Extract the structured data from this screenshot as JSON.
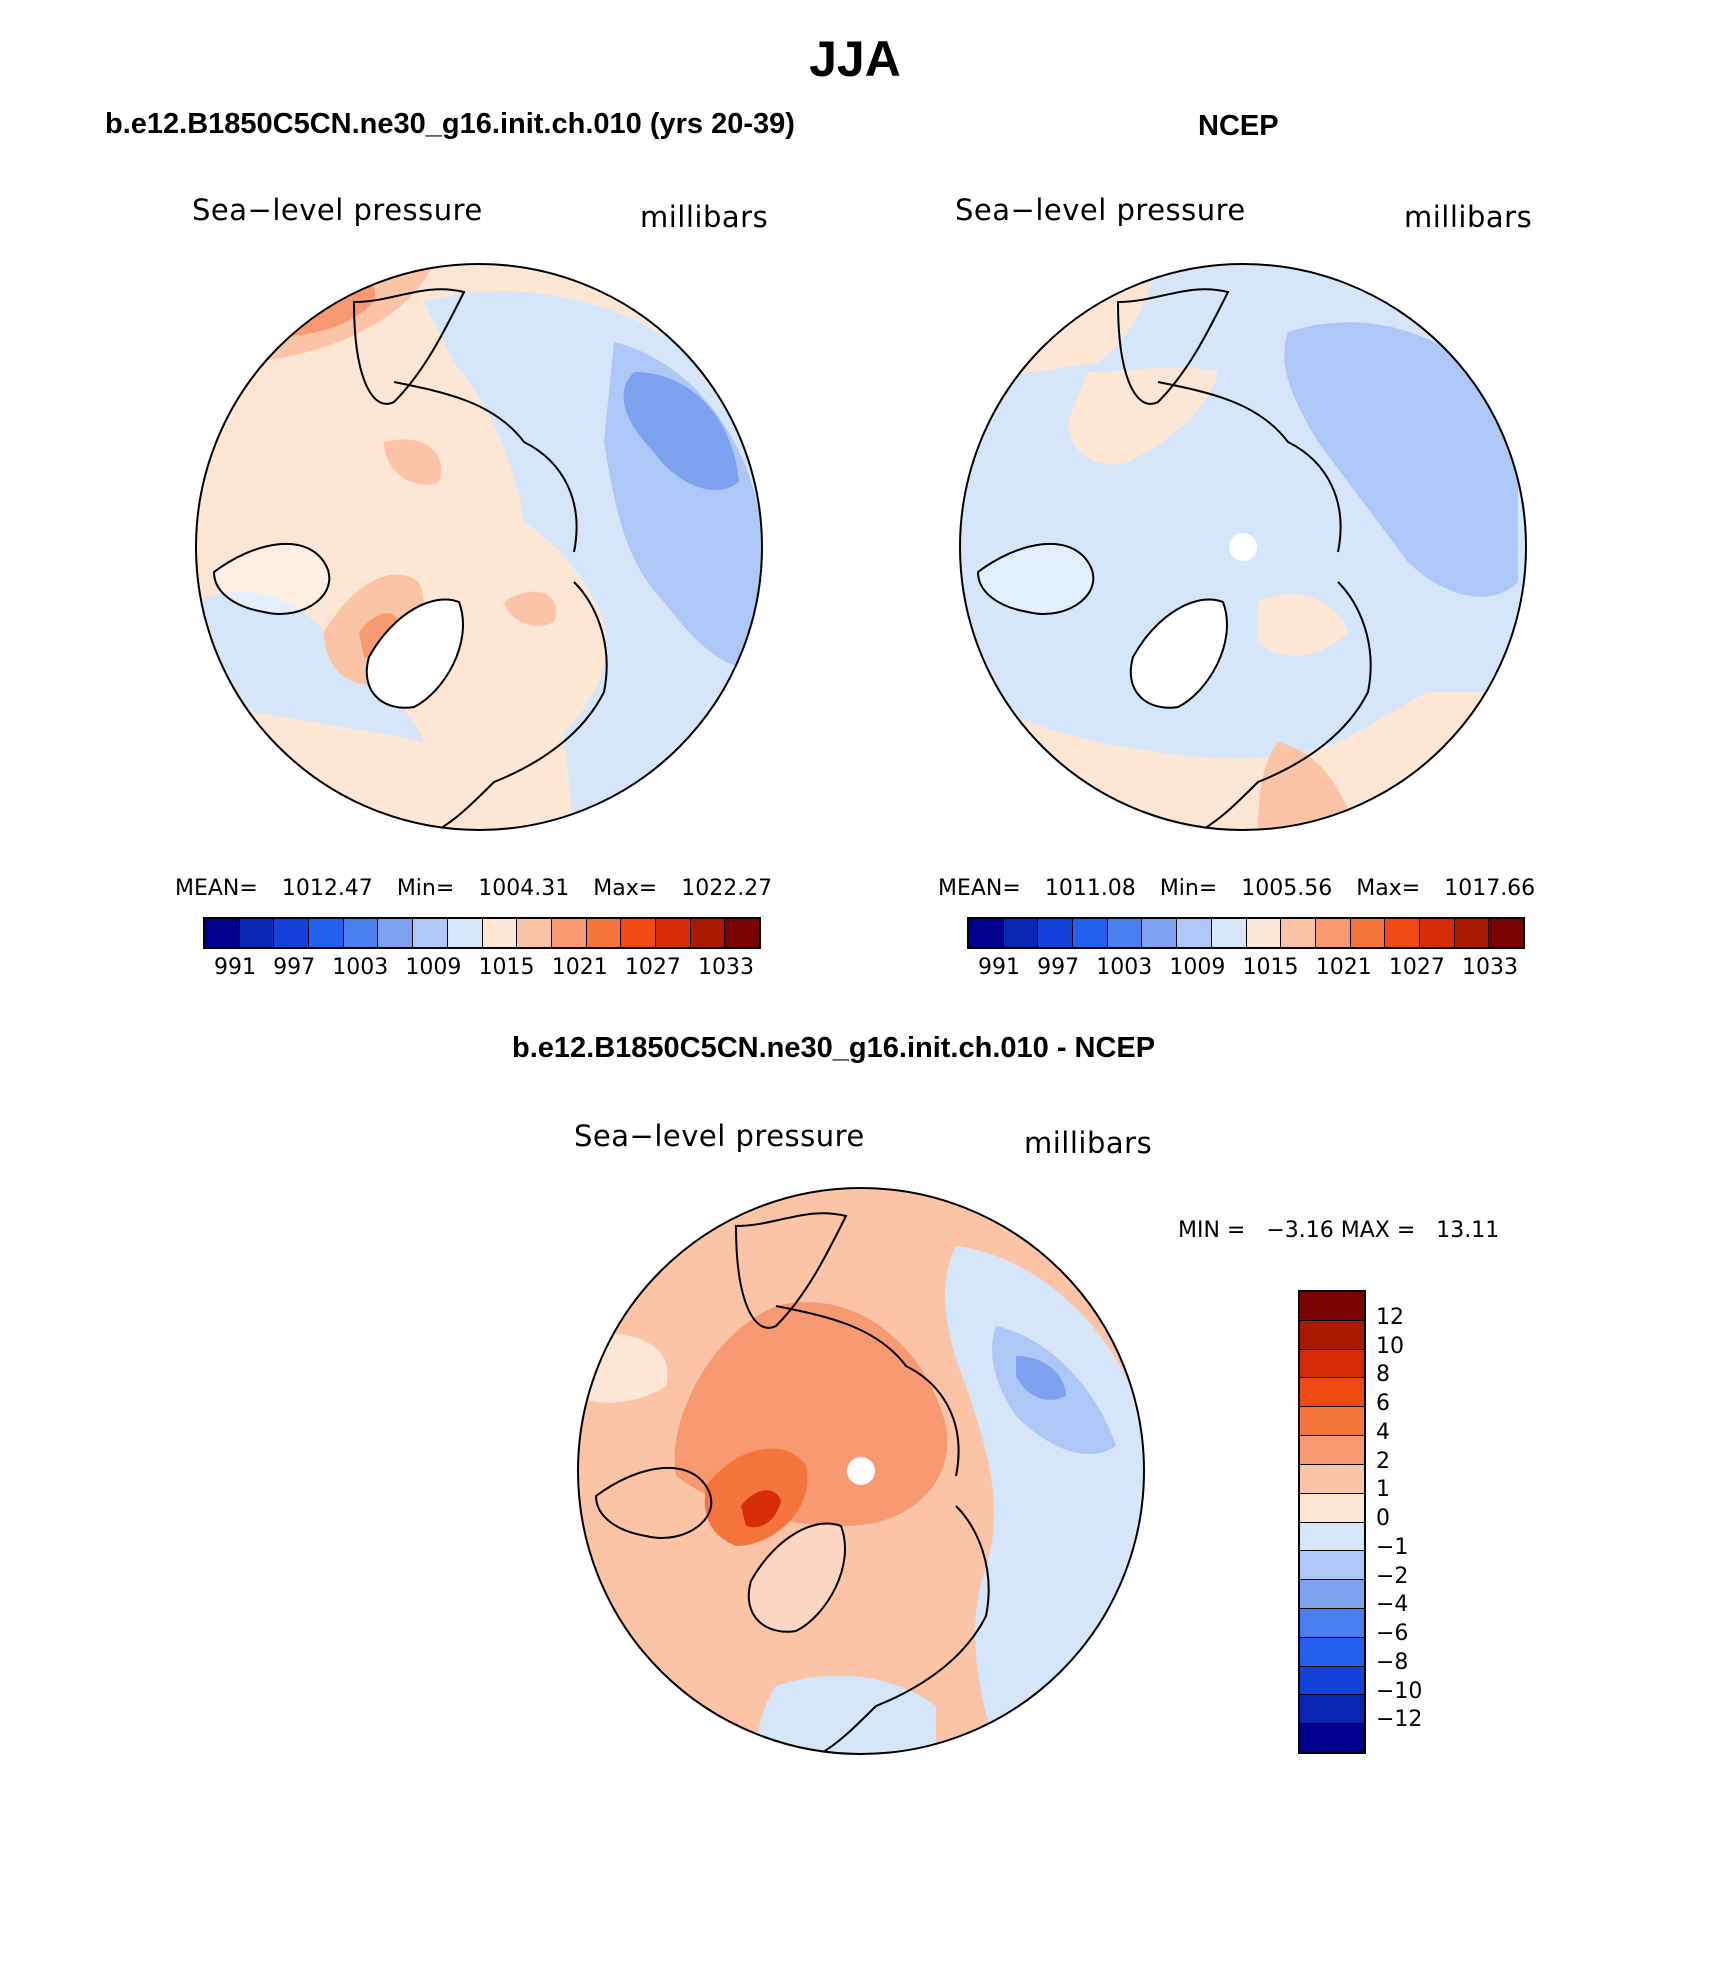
{
  "season": "JJA",
  "palette": [
    "#00008c",
    "#0a24b4",
    "#1440dc",
    "#2460f0",
    "#4a7ff0",
    "#7ea2f0",
    "#adc8f6",
    "#d6e6fa",
    "#fde6d4",
    "#fbc4a6",
    "#f79a72",
    "#f4743c",
    "#ef4a12",
    "#d62c08",
    "#aa1a02",
    "#7a0302"
  ],
  "diff_palette": [
    "#7a0302",
    "#aa1a02",
    "#d62c08",
    "#ef4a12",
    "#f4743c",
    "#f79a72",
    "#fbc4a6",
    "#fde6d4",
    "#d6e6fa",
    "#adc8f6",
    "#7ea2f0",
    "#4a7ff0",
    "#2460f0",
    "#1440dc",
    "#0a24b4",
    "#00008c"
  ],
  "land_color": "#ffffff",
  "panels": {
    "model": {
      "title": "b.e12.B1850C5CN.ne30_g16.init.ch.010 (yrs 20-39)",
      "variable": "Sea−level pressure",
      "units": "millibars",
      "stats": {
        "mean_label": "MEAN=",
        "mean": "1012.47",
        "min_label": "Min=",
        "min": "1004.31",
        "max_label": "Max=",
        "max": "1022.27"
      },
      "ticks": [
        "991",
        "997",
        "1003",
        "1009",
        "1015",
        "1021",
        "1027",
        "1033"
      ]
    },
    "obs": {
      "title": "NCEP",
      "variable": "Sea−level pressure",
      "units": "millibars",
      "stats": {
        "mean_label": "MEAN=",
        "mean": "1011.08",
        "min_label": "Min=",
        "min": "1005.56",
        "max_label": "Max=",
        "max": "1017.66"
      },
      "ticks": [
        "991",
        "997",
        "1003",
        "1009",
        "1015",
        "1021",
        "1027",
        "1033"
      ]
    },
    "diff": {
      "title": "b.e12.B1850C5CN.ne30_g16.init.ch.010 - NCEP",
      "variable": "Sea−level pressure",
      "units": "millibars",
      "minmax": "MIN =   −3.16 MAX =   13.11",
      "ticks": [
        "12",
        "10",
        "8",
        "6",
        "4",
        "2",
        "1",
        "0",
        "−1",
        "−2",
        "−4",
        "−6",
        "−8",
        "−10",
        "−12"
      ]
    }
  }
}
